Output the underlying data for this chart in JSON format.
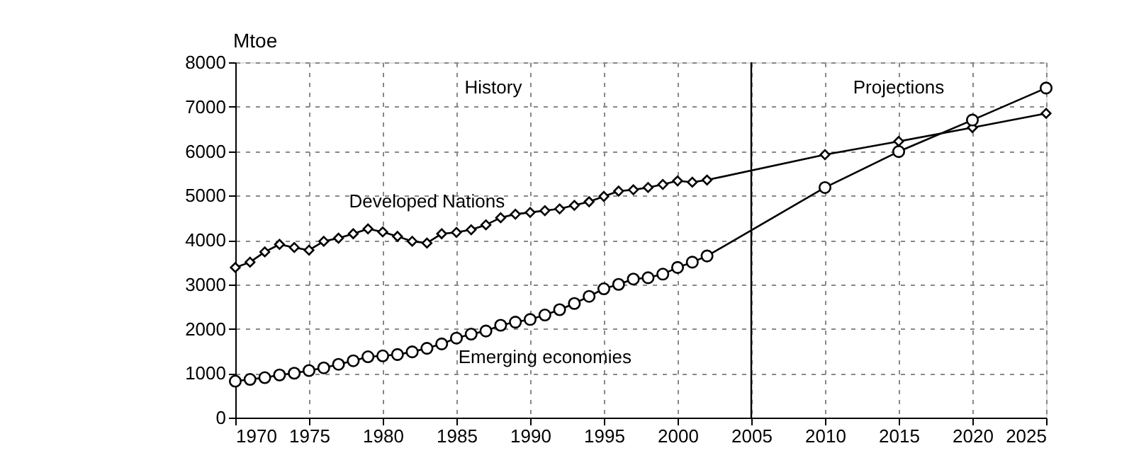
{
  "chart_data": {
    "type": "line",
    "ylabel": "Mtoe",
    "xlim": [
      1970,
      2025
    ],
    "xticks": [
      1970,
      1975,
      1980,
      1985,
      1990,
      1995,
      2000,
      2005,
      2010,
      2015,
      2020,
      2025
    ],
    "ylim": [
      0,
      8000
    ],
    "yticks": [
      0,
      1000,
      2000,
      3000,
      4000,
      5000,
      6000,
      7000,
      8000
    ],
    "grid": true,
    "line_style": "solid",
    "series": [
      {
        "name": "Developed Nations",
        "color": "#000000",
        "marker": "diamond",
        "x": [
          1970,
          1971,
          1972,
          1973,
          1974,
          1975,
          1976,
          1977,
          1978,
          1979,
          1980,
          1981,
          1982,
          1983,
          1984,
          1985,
          1986,
          1987,
          1988,
          1989,
          1990,
          1991,
          1992,
          1993,
          1994,
          1995,
          1996,
          1997,
          1998,
          1999,
          2000,
          2001,
          2002,
          2010,
          2015,
          2020,
          2025
        ],
        "values": [
          3380,
          3500,
          3730,
          3900,
          3830,
          3770,
          3970,
          4040,
          4140,
          4250,
          4180,
          4080,
          3970,
          3930,
          4140,
          4170,
          4230,
          4340,
          4500,
          4580,
          4620,
          4660,
          4700,
          4780,
          4860,
          4980,
          5100,
          5130,
          5180,
          5250,
          5330,
          5300,
          5350,
          5920,
          6220,
          6530,
          6850
        ]
      },
      {
        "name": "Emerging economies",
        "color": "#000000",
        "marker": "circle",
        "x": [
          1970,
          1971,
          1972,
          1973,
          1974,
          1975,
          1976,
          1977,
          1978,
          1979,
          1980,
          1981,
          1982,
          1983,
          1984,
          1985,
          1986,
          1987,
          1988,
          1989,
          1990,
          1991,
          1992,
          1993,
          1994,
          1995,
          1996,
          1997,
          1998,
          1999,
          2000,
          2001,
          2002,
          2010,
          2015,
          2020,
          2025
        ],
        "values": [
          820,
          860,
          900,
          960,
          1000,
          1060,
          1120,
          1200,
          1280,
          1370,
          1390,
          1420,
          1480,
          1560,
          1660,
          1790,
          1880,
          1950,
          2080,
          2150,
          2210,
          2310,
          2430,
          2570,
          2730,
          2900,
          3000,
          3120,
          3150,
          3230,
          3380,
          3500,
          3640,
          5180,
          5990,
          6700,
          7420
        ]
      }
    ],
    "ref_lines": [
      {
        "axis": "x",
        "value": 2005,
        "color": "#000000",
        "line_style": "solid"
      }
    ],
    "annotations": [
      "History",
      "Projections"
    ]
  }
}
